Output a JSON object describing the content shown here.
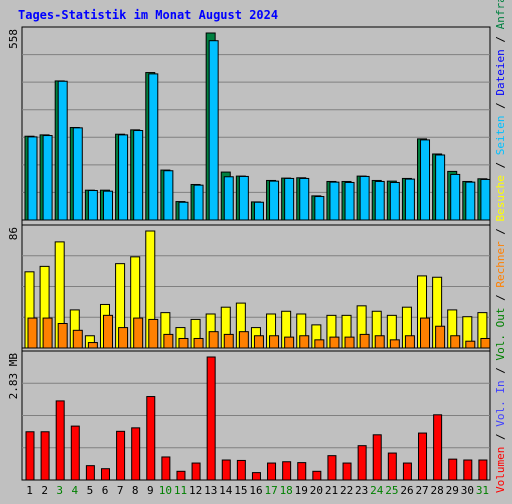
{
  "title": "Tages-Statistik im Monat August 2024",
  "colors": {
    "background": "#c0c0c0",
    "title": "#0000ff",
    "anfragen": "#008040",
    "dateien": "#00c0ff",
    "seiten": "#00e0ff",
    "besuche": "#ffff00",
    "rechner": "#ff8000",
    "volumen": "#ff0000",
    "vol_in": "#4040ff",
    "vol_out": "#008000",
    "label_gray": "#808080",
    "weekend_day": "#008000"
  },
  "right_legend": {
    "top": [
      {
        "text": "Anfragen",
        "color": "#008040"
      },
      {
        "text": " / ",
        "color": "#000000"
      },
      {
        "text": "Dateien",
        "color": "#0000ff"
      },
      {
        "text": " / ",
        "color": "#000000"
      },
      {
        "text": "Seiten",
        "color": "#00c0ff"
      },
      {
        "text": " / ",
        "color": "#000000"
      },
      {
        "text": "Besuche",
        "color": "#ffff00"
      },
      {
        "text": " / ",
        "color": "#000000"
      },
      {
        "text": "Rechner",
        "color": "#ff8000"
      },
      {
        "text": " / ",
        "color": "#000000"
      },
      {
        "text": "Vol. Out",
        "color": "#008000"
      },
      {
        "text": " / ",
        "color": "#000000"
      },
      {
        "text": "Vol. In",
        "color": "#4040ff"
      },
      {
        "text": " / ",
        "color": "#000000"
      },
      {
        "text": "Volumen",
        "color": "#ff0000"
      }
    ]
  },
  "chart_data": [
    {
      "type": "bar",
      "ymax_label": "558",
      "ylim": [
        0,
        558
      ],
      "categories": [
        "1",
        "2",
        "3",
        "4",
        "5",
        "6",
        "7",
        "8",
        "9",
        "10",
        "11",
        "12",
        "13",
        "14",
        "15",
        "16",
        "17",
        "18",
        "19",
        "20",
        "21",
        "22",
        "23",
        "24",
        "25",
        "26",
        "27",
        "28",
        "29",
        "30",
        "31"
      ],
      "series": [
        {
          "name": "Anfragen",
          "values": [
            250,
            254,
            415,
            276,
            89,
            89,
            256,
            269,
            440,
            149,
            55,
            106,
            558,
            143,
            131,
            54,
            118,
            125,
            126,
            72,
            115,
            115,
            131,
            118,
            116,
            124,
            242,
            197,
            145,
            115,
            123
          ]
        },
        {
          "name": "Dateien",
          "values": [
            248,
            252,
            414,
            275,
            88,
            86,
            254,
            267,
            436,
            147,
            53,
            104,
            535,
            129,
            130,
            53,
            116,
            124,
            124,
            70,
            113,
            112,
            130,
            115,
            112,
            122,
            239,
            194,
            136,
            113,
            121
          ]
        },
        {
          "name": "Seiten",
          "values": [
            248,
            252,
            414,
            275,
            88,
            86,
            254,
            267,
            436,
            147,
            53,
            104,
            535,
            129,
            130,
            53,
            116,
            124,
            124,
            70,
            113,
            112,
            130,
            115,
            112,
            122,
            239,
            194,
            136,
            113,
            121
          ]
        }
      ]
    },
    {
      "type": "bar",
      "ymax_label": "86",
      "ylim": [
        0,
        86
      ],
      "categories": [
        "1",
        "2",
        "3",
        "4",
        "5",
        "6",
        "7",
        "8",
        "9",
        "10",
        "11",
        "12",
        "13",
        "14",
        "15",
        "16",
        "17",
        "18",
        "19",
        "20",
        "21",
        "22",
        "23",
        "24",
        "25",
        "26",
        "27",
        "28",
        "29",
        "30",
        "31"
      ],
      "series": [
        {
          "name": "Besuche",
          "values": [
            56,
            60,
            78,
            28,
            9,
            32,
            62,
            67,
            86,
            26,
            15,
            21,
            25,
            30,
            33,
            15,
            25,
            27,
            25,
            17,
            24,
            24,
            31,
            27,
            24,
            30,
            53,
            52,
            28,
            23,
            26
          ]
        },
        {
          "name": "Rechner",
          "values": [
            22,
            22,
            18,
            13,
            4,
            24,
            15,
            22,
            21,
            10,
            7,
            7,
            12,
            10,
            12,
            9,
            9,
            8,
            9,
            6,
            8,
            8,
            10,
            9,
            6,
            9,
            22,
            16,
            9,
            5,
            7
          ]
        }
      ]
    },
    {
      "type": "bar",
      "ymax_label": "2.83 MB",
      "ylim": [
        0,
        2.83
      ],
      "categories": [
        "1",
        "2",
        "3",
        "4",
        "5",
        "6",
        "7",
        "8",
        "9",
        "10",
        "11",
        "12",
        "13",
        "14",
        "15",
        "16",
        "17",
        "18",
        "19",
        "20",
        "21",
        "22",
        "23",
        "24",
        "25",
        "26",
        "27",
        "28",
        "29",
        "30",
        "31"
      ],
      "series": [
        {
          "name": "Volumen",
          "values": [
            1.11,
            1.11,
            1.82,
            1.24,
            0.33,
            0.26,
            1.12,
            1.2,
            1.92,
            0.53,
            0.2,
            0.39,
            2.83,
            0.46,
            0.45,
            0.17,
            0.39,
            0.42,
            0.4,
            0.2,
            0.56,
            0.39,
            0.79,
            1.04,
            0.62,
            0.39,
            1.08,
            1.5,
            0.48,
            0.46,
            0.46
          ]
        }
      ]
    }
  ],
  "weekend_days": [
    "3",
    "4",
    "10",
    "11",
    "17",
    "18",
    "24",
    "25",
    "31"
  ]
}
